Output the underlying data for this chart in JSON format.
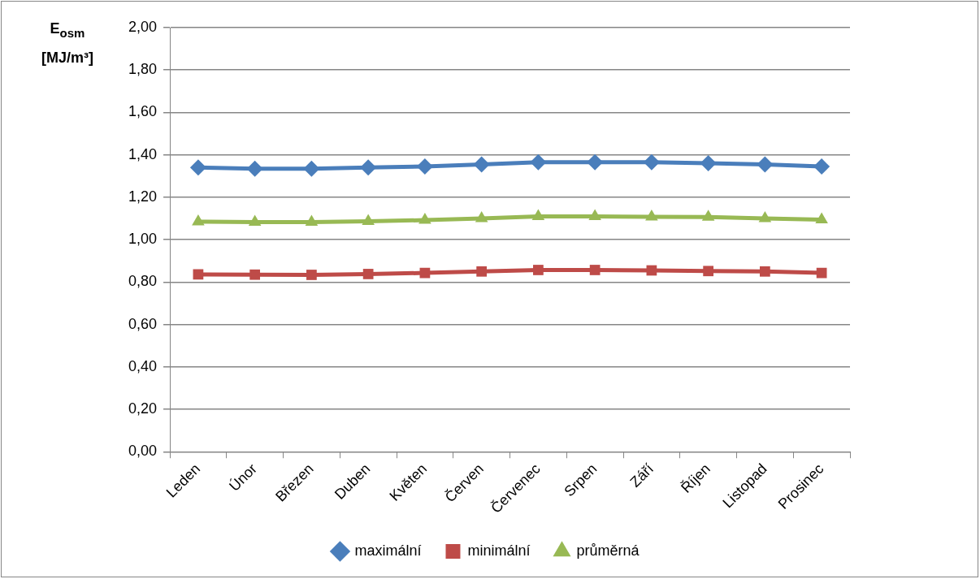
{
  "chart_data": {
    "type": "line",
    "ylabel": "E$_{osm}$ [MJ/m³]",
    "categories": [
      "Leden",
      "Únor",
      "Březen",
      "Duben",
      "Květen",
      "Červen",
      "Červenec",
      "Srpen",
      "Září",
      "Říjen",
      "Listopad",
      "Prosinec"
    ],
    "series": [
      {
        "name": "maximální",
        "color": "#4a7ebb",
        "marker": "diamond",
        "values": [
          1.34,
          1.335,
          1.335,
          1.34,
          1.345,
          1.355,
          1.365,
          1.365,
          1.365,
          1.36,
          1.355,
          1.345
        ]
      },
      {
        "name": "minimální",
        "color": "#be4b48",
        "marker": "square",
        "values": [
          0.836,
          0.835,
          0.834,
          0.838,
          0.843,
          0.85,
          0.857,
          0.857,
          0.855,
          0.852,
          0.85,
          0.843
        ]
      },
      {
        "name": "průměrná",
        "color": "#98b954",
        "marker": "triangle",
        "values": [
          1.085,
          1.083,
          1.083,
          1.087,
          1.092,
          1.1,
          1.11,
          1.11,
          1.108,
          1.107,
          1.1,
          1.094
        ]
      }
    ],
    "ylim": [
      0,
      2
    ],
    "yticks": [
      {
        "value": 0,
        "label": "0,00"
      },
      {
        "value": 0.2,
        "label": "0,20"
      },
      {
        "value": 0.4,
        "label": "0,40"
      },
      {
        "value": 0.6,
        "label": "0,60"
      },
      {
        "value": 0.8,
        "label": "0,80"
      },
      {
        "value": 1,
        "label": "1,00"
      },
      {
        "value": 1.2,
        "label": "1,20"
      },
      {
        "value": 1.4,
        "label": "1,40"
      },
      {
        "value": 1.6,
        "label": "1,60"
      },
      {
        "value": 1.8,
        "label": "1,80"
      },
      {
        "value": 2,
        "label": "2,00"
      }
    ],
    "grid": "y",
    "legend": "bottom",
    "line_style": "solid"
  }
}
